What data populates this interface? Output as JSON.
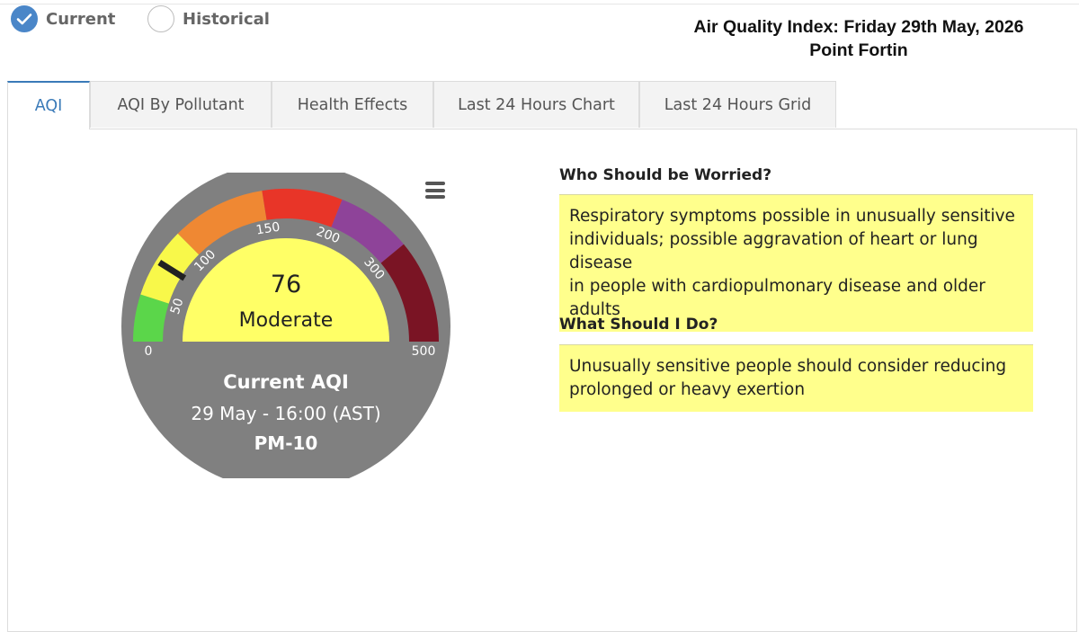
{
  "mode_options": {
    "current_label": "Current",
    "historical_label": "Historical",
    "selected": "Current"
  },
  "header": {
    "title_line1": "Air Quality Index: Friday 29th May, 2026",
    "title_line2": "Point Fortin"
  },
  "tabs": [
    {
      "label": "AQI",
      "active": true
    },
    {
      "label": "AQI By Pollutant",
      "active": false
    },
    {
      "label": "Health Effects",
      "active": false
    },
    {
      "label": "Last 24 Hours Chart",
      "active": false
    },
    {
      "label": "Last 24 Hours Grid",
      "active": false
    }
  ],
  "gauge": {
    "value": "76",
    "category": "Moderate",
    "caption_title": "Current AQI",
    "caption_time": "29 May - 16:00 (AST)",
    "caption_pollutant": "PM-10",
    "scale_min": 0,
    "scale_max": 500,
    "reading": 76,
    "tick_labels": [
      "0",
      "50",
      "100",
      "150",
      "200",
      "300",
      "500"
    ],
    "band_colors": [
      "#5bd64a",
      "#f8f84a",
      "#ef8833",
      "#e83528",
      "#8e4399",
      "#7a1424"
    ],
    "dial_color": "#808080",
    "face_color": "#ffff66"
  },
  "advice": {
    "who_heading": "Who Should be Worried?",
    "who_text_lines": [
      "Respiratory symptoms possible in unusually sensitive",
      "individuals; possible aggravation of heart or lung disease",
      "in people with cardiopulmonary disease and older adults"
    ],
    "what_heading": "What Should I Do?",
    "what_text_lines": [
      "Unusually sensitive people should consider reducing",
      "prolonged or heavy exertion"
    ]
  }
}
